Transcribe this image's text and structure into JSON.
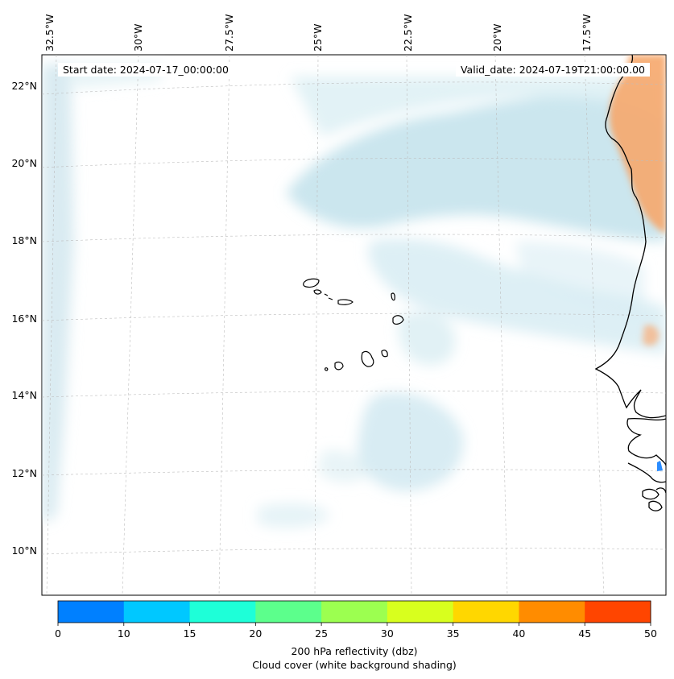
{
  "header": {
    "start_date": "Start date: 2024-07-17_00:00:00",
    "valid_date": "Valid_date: 2024-07-19T21:00:00.00"
  },
  "longitude_labels": [
    "32.5°W",
    "30°W",
    "27.5°W",
    "25°W",
    "22.5°W",
    "20°W",
    "17.5°W"
  ],
  "latitude_labels": [
    "22°N",
    "20°N",
    "18°N",
    "16°N",
    "14°N",
    "12°N",
    "10°N"
  ],
  "colorbar": {
    "ticks": [
      "0",
      "10",
      "15",
      "20",
      "25",
      "30",
      "35",
      "40",
      "45",
      "50"
    ],
    "colors": [
      "#0080ff",
      "#00c8ff",
      "#1effd8",
      "#5cff8c",
      "#9cff50",
      "#d8ff1e",
      "#ffd700",
      "#ff8c00",
      "#ff4500"
    ],
    "label_line1": "200 hPa reflectivity (dbz)",
    "label_line2": "Cloud cover (white background shading)"
  }
}
